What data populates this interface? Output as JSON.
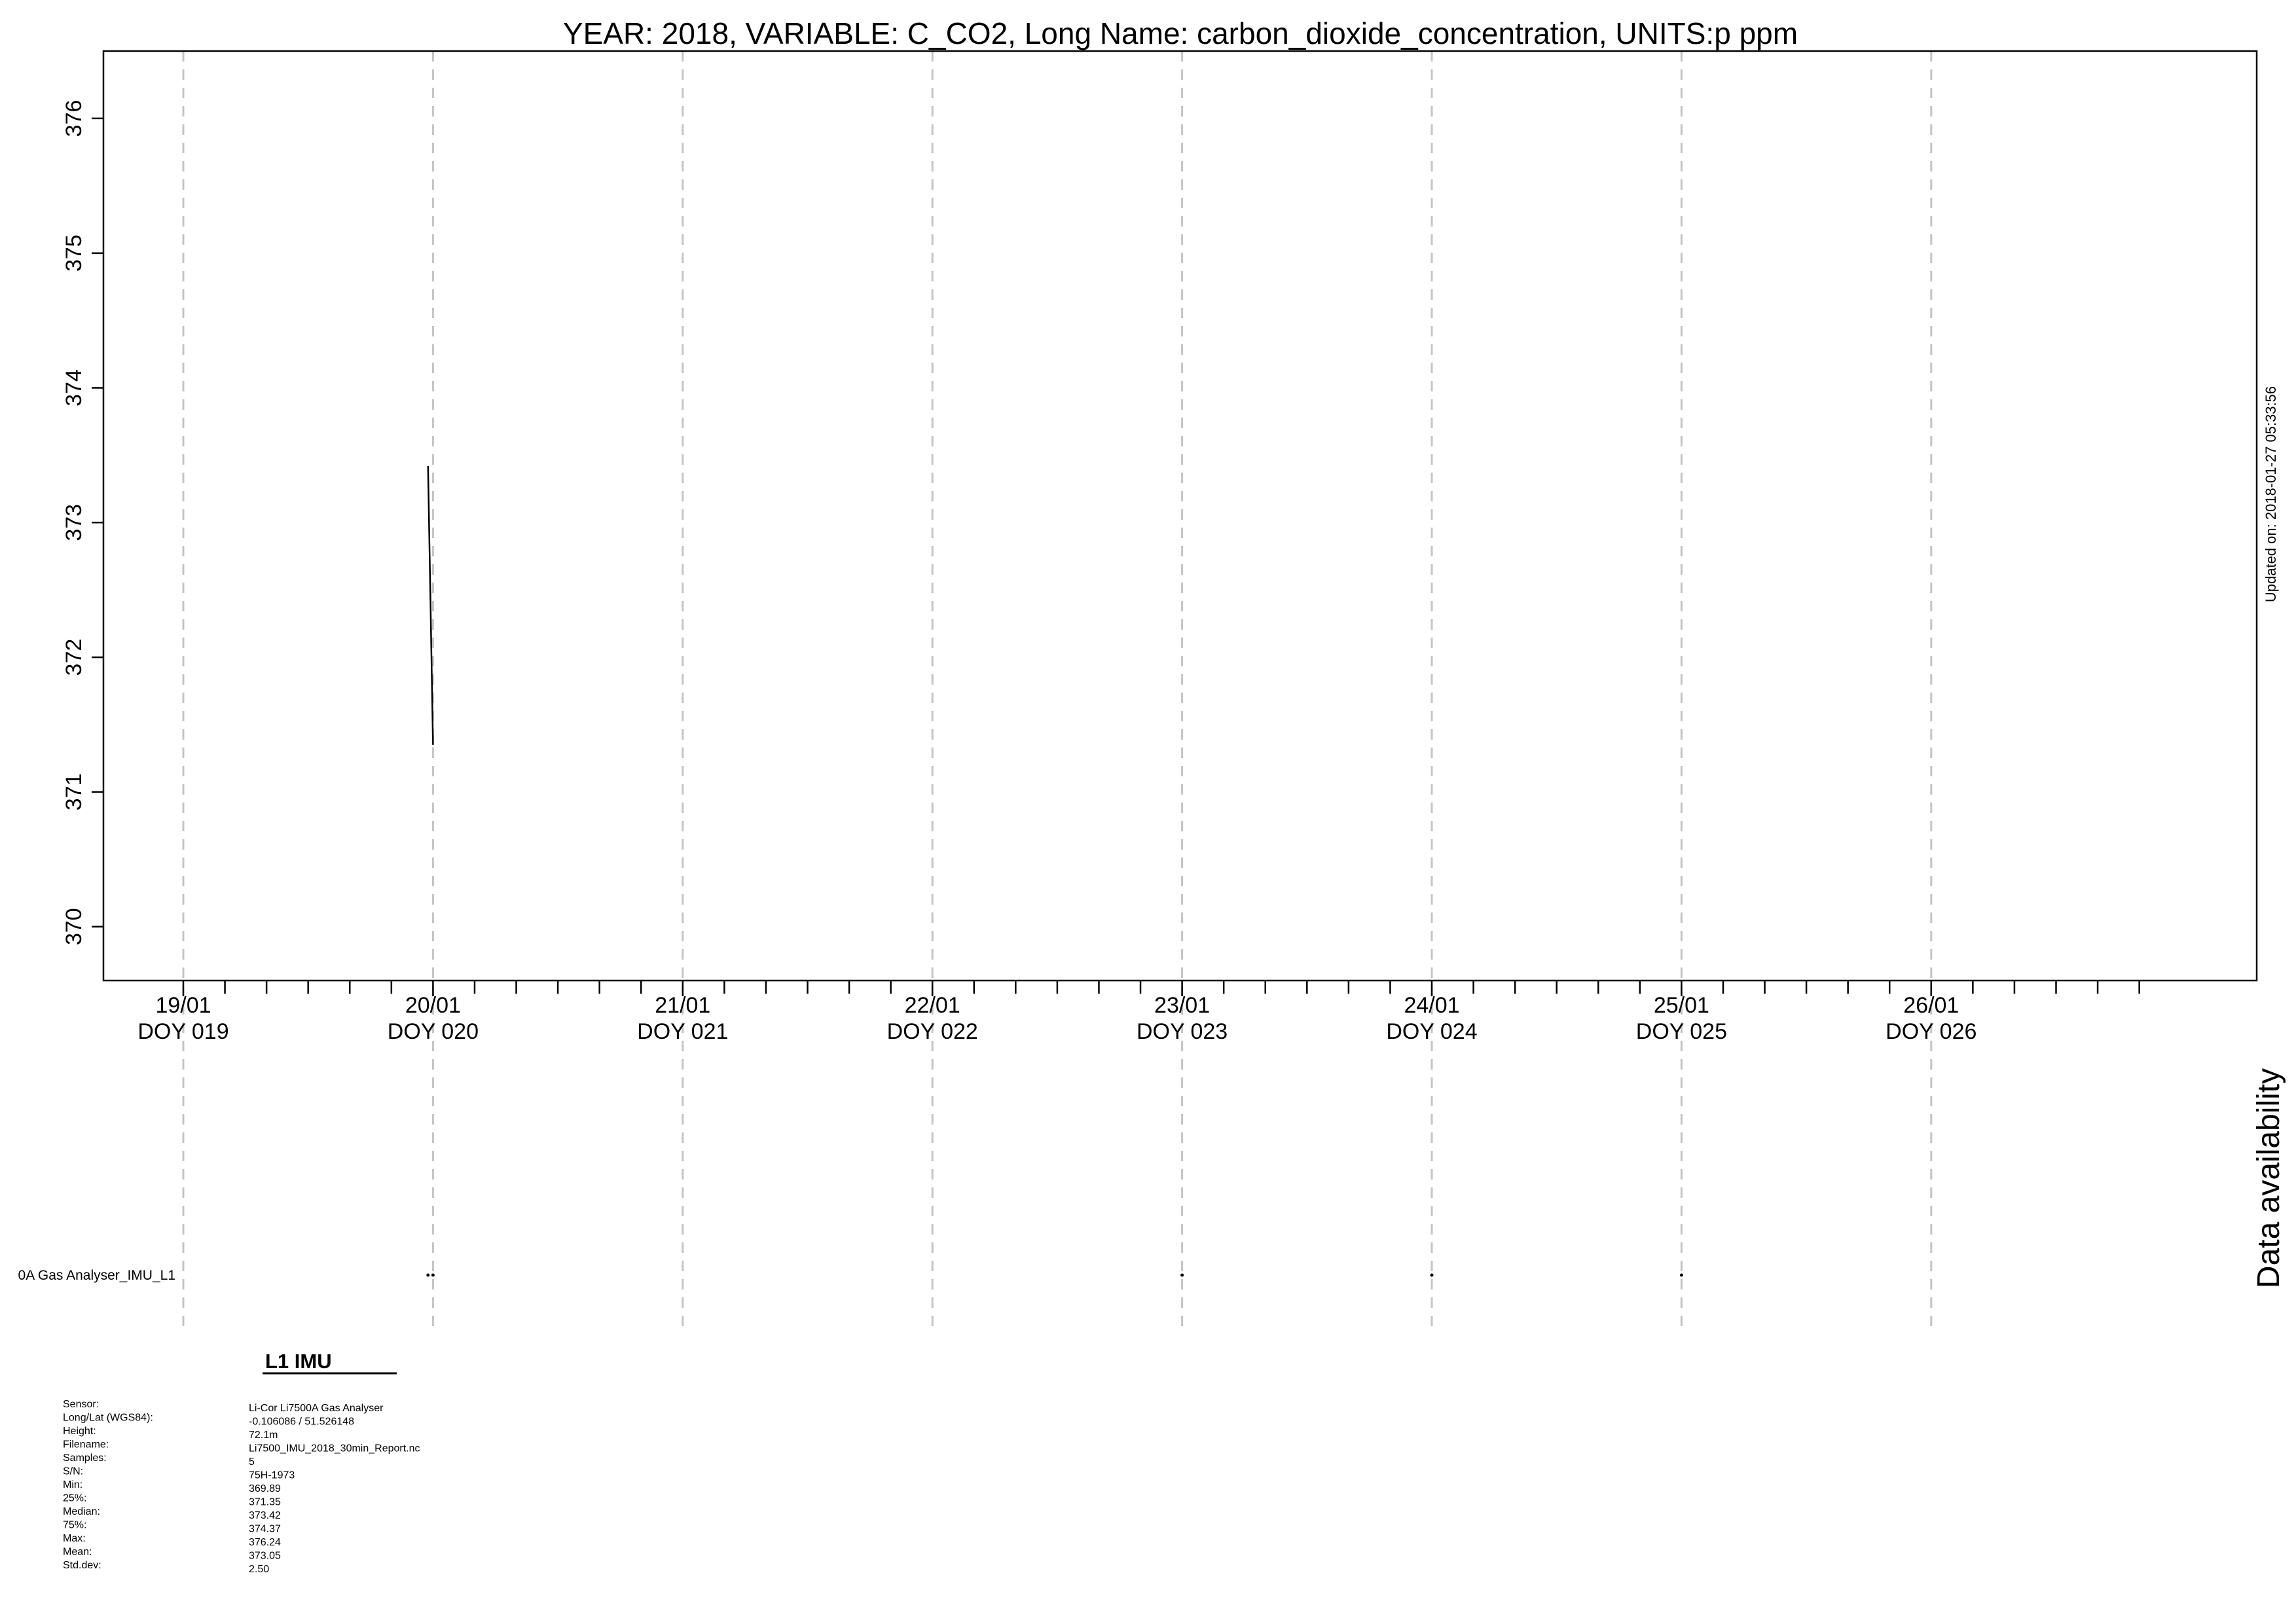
{
  "chart_data": {
    "type": "line",
    "title": "YEAR: 2018, VARIABLE: C_CO2, Long Name: carbon_dioxide_concentration, UNITS:p ppm",
    "xlabel": "",
    "ylabel": "",
    "x_unit": "day of year 2018",
    "xlim": [
      19.0,
      27.65
    ],
    "ylim": [
      369.6,
      376.5
    ],
    "grid": "vertical dashed at day boundaries",
    "yticks": [
      370,
      371,
      372,
      373,
      374,
      375,
      376
    ],
    "ytick_labels": [
      "370",
      "371",
      "372",
      "373",
      "374",
      "375",
      "376"
    ],
    "xticks": [
      {
        "doy": 19,
        "date": "19/01",
        "label": "DOY 019"
      },
      {
        "doy": 20,
        "date": "20/01",
        "label": "DOY 020"
      },
      {
        "doy": 21,
        "date": "21/01",
        "label": "DOY 021"
      },
      {
        "doy": 22,
        "date": "22/01",
        "label": "DOY 022"
      },
      {
        "doy": 23,
        "date": "23/01",
        "label": "DOY 023"
      },
      {
        "doy": 24,
        "date": "24/01",
        "label": "DOY 024"
      },
      {
        "doy": 25,
        "date": "25/01",
        "label": "DOY 025"
      },
      {
        "doy": 26,
        "date": "26/01",
        "label": "DOY 026"
      }
    ],
    "minor_tick_hours": 4,
    "series": [
      {
        "x": [
          19.98,
          19.99,
          20.0
        ],
        "y": [
          373.42,
          372.4,
          371.35
        ]
      }
    ],
    "updated_text": "Updated on: 2018-01-27 05:33:56",
    "availability": {
      "title": "Data availability",
      "label": "0A Gas Analyser_IMU_L1",
      "points": [
        19.98,
        20.0,
        23.0,
        24.0,
        25.0
      ]
    }
  },
  "info": {
    "heading": "L1 IMU",
    "rows": [
      {
        "label": "Sensor:",
        "value": "Li-Cor Li7500A Gas Analyser"
      },
      {
        "label": "Long/Lat (WGS84):",
        "value": "-0.106086 / 51.526148"
      },
      {
        "label": "Height:",
        "value": "72.1m"
      },
      {
        "label": "Filename:",
        "value": "Li7500_IMU_2018_30min_Report.nc"
      },
      {
        "label": "Samples:",
        "value": "5"
      },
      {
        "label": "S/N:",
        "value": "75H-1973"
      },
      {
        "label": "Min:",
        "value": "369.89"
      },
      {
        "label": "25%:",
        "value": "371.35"
      },
      {
        "label": "Median:",
        "value": "373.42"
      },
      {
        "label": "75%:",
        "value": "374.37"
      },
      {
        "label": "Max:",
        "value": "376.24"
      },
      {
        "label": "Mean:",
        "value": "373.05"
      },
      {
        "label": "Std.dev:",
        "value": "2.50"
      }
    ]
  }
}
